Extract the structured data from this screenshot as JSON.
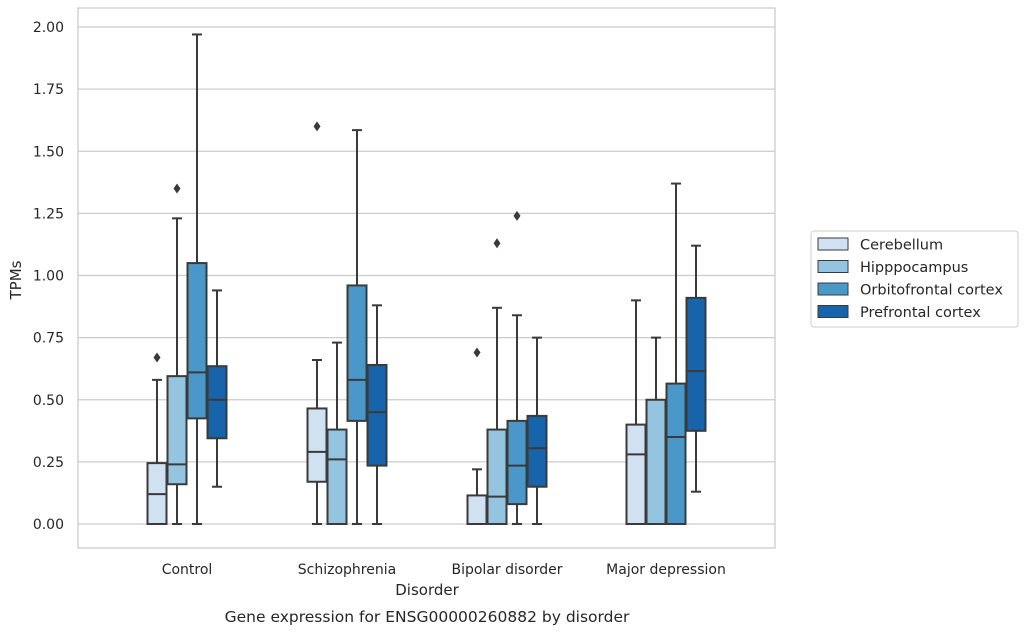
{
  "chart_data": {
    "type": "box",
    "title": "",
    "caption": "Gene expression for ENSG00000260882 by disorder",
    "xlabel": "Disorder",
    "ylabel": "TPMs",
    "ylim": [
      -0.1,
      2.07
    ],
    "yticks": [
      "0.00",
      "0.25",
      "0.50",
      "0.75",
      "1.00",
      "1.25",
      "1.50",
      "1.75",
      "2.00"
    ],
    "categories": [
      "Control",
      "Schizophrenia",
      "Bipolar disorder",
      "Major depression"
    ],
    "grid": "horizontal",
    "legend": {
      "placement": "right",
      "entries": [
        "Cerebellum",
        "Hipppocampus",
        "Orbitofrontal cortex",
        "Prefrontal cortex"
      ]
    },
    "colors": [
      "#d0e1f2",
      "#94c4df",
      "#4a98c9",
      "#1764ab"
    ],
    "series": [
      {
        "name": "Cerebellum",
        "boxes": [
          {
            "category": "Control",
            "whislo": 0,
            "q1": 0,
            "med": 0.12,
            "q3": 0.245,
            "whishi": 0.58,
            "fliers": [
              0.67
            ]
          },
          {
            "category": "Schizophrenia",
            "whislo": 0,
            "q1": 0.17,
            "med": 0.29,
            "q3": 0.465,
            "whishi": 0.66,
            "fliers": [
              1.6
            ]
          },
          {
            "category": "Bipolar disorder",
            "whislo": 0,
            "q1": 0,
            "med": 0,
            "q3": 0.115,
            "whishi": 0.22,
            "fliers": [
              0.69
            ]
          },
          {
            "category": "Major depression",
            "whislo": 0,
            "q1": 0,
            "med": 0.28,
            "q3": 0.4,
            "whishi": 0.9,
            "fliers": []
          }
        ]
      },
      {
        "name": "Hipppocampus",
        "boxes": [
          {
            "category": "Control",
            "whislo": 0,
            "q1": 0.16,
            "med": 0.24,
            "q3": 0.595,
            "whishi": 1.23,
            "fliers": [
              1.35
            ]
          },
          {
            "category": "Schizophrenia",
            "whislo": 0,
            "q1": 0,
            "med": 0.26,
            "q3": 0.38,
            "whishi": 0.73,
            "fliers": []
          },
          {
            "category": "Bipolar disorder",
            "whislo": 0,
            "q1": 0,
            "med": 0.11,
            "q3": 0.38,
            "whishi": 0.87,
            "fliers": [
              1.13
            ]
          },
          {
            "category": "Major depression",
            "whislo": 0,
            "q1": 0,
            "med": 0,
            "q3": 0.5,
            "whishi": 0.75,
            "fliers": []
          }
        ]
      },
      {
        "name": "Orbitofrontal cortex",
        "boxes": [
          {
            "category": "Control",
            "whislo": 0,
            "q1": 0.425,
            "med": 0.61,
            "q3": 1.05,
            "whishi": 1.97,
            "fliers": []
          },
          {
            "category": "Schizophrenia",
            "whislo": 0,
            "q1": 0.415,
            "med": 0.58,
            "q3": 0.96,
            "whishi": 1.585,
            "fliers": []
          },
          {
            "category": "Bipolar disorder",
            "whislo": 0,
            "q1": 0.08,
            "med": 0.235,
            "q3": 0.415,
            "whishi": 0.84,
            "fliers": [
              1.24
            ]
          },
          {
            "category": "Major depression",
            "whislo": 0,
            "q1": 0,
            "med": 0.35,
            "q3": 0.565,
            "whishi": 1.37,
            "fliers": []
          }
        ]
      },
      {
        "name": "Prefrontal cortex",
        "boxes": [
          {
            "category": "Control",
            "whislo": 0.15,
            "q1": 0.345,
            "med": 0.5,
            "q3": 0.635,
            "whishi": 0.94,
            "fliers": []
          },
          {
            "category": "Schizophrenia",
            "whislo": 0,
            "q1": 0.235,
            "med": 0.45,
            "q3": 0.64,
            "whishi": 0.88,
            "fliers": []
          },
          {
            "category": "Bipolar disorder",
            "whislo": 0,
            "q1": 0.15,
            "med": 0.305,
            "q3": 0.435,
            "whishi": 0.75,
            "fliers": []
          },
          {
            "category": "Major depression",
            "whislo": 0.13,
            "q1": 0.375,
            "med": 0.615,
            "q3": 0.91,
            "whishi": 1.12,
            "fliers": []
          }
        ]
      }
    ]
  }
}
